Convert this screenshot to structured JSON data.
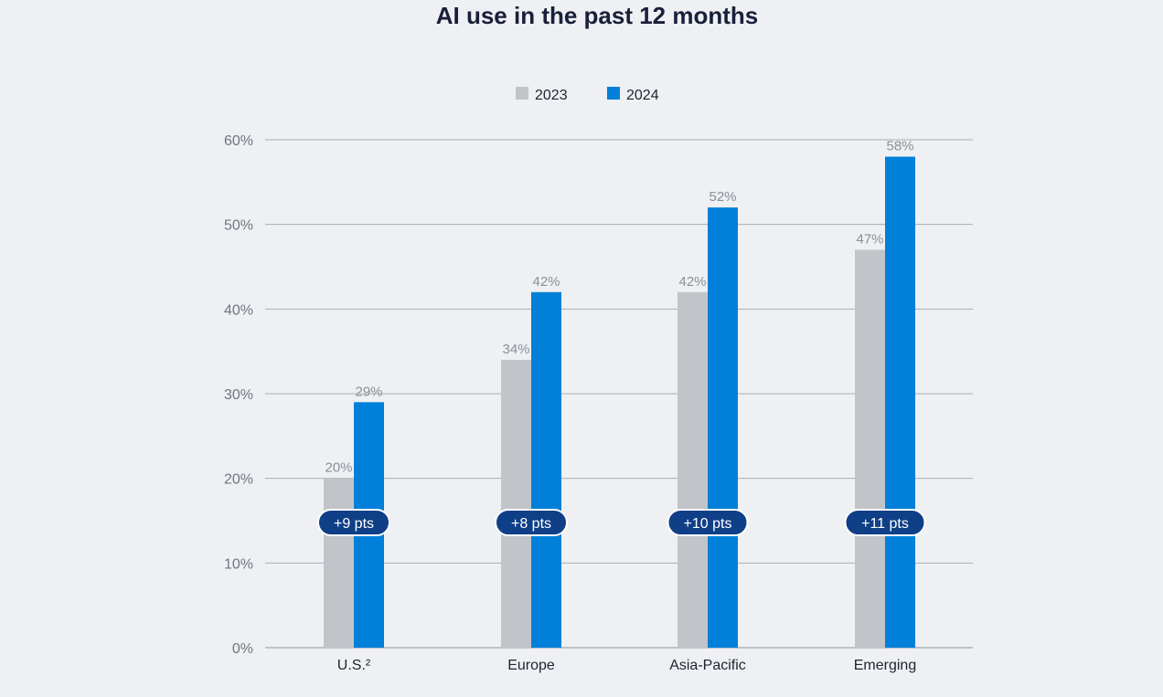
{
  "chart_data": {
    "type": "bar",
    "title": "AI use in the past 12 months",
    "categories": [
      "U.S.²",
      "Europe",
      "Asia-Pacific",
      "Emerging"
    ],
    "series": [
      {
        "name": "2023",
        "color": "#c1c5c9",
        "values": [
          20,
          34,
          42,
          47
        ]
      },
      {
        "name": "2024",
        "color": "#0080d8",
        "values": [
          29,
          42,
          52,
          58
        ]
      }
    ],
    "value_labels": {
      "2023": [
        "20%",
        "34%",
        "42%",
        "47%"
      ],
      "2024": [
        "29%",
        "42%",
        "52%",
        "58%"
      ]
    },
    "differences": [
      "+9 pts",
      "+8 pts",
      "+10 pts",
      "+11 pts"
    ],
    "yticks": [
      0,
      10,
      20,
      30,
      40,
      50,
      60
    ],
    "ytick_labels": [
      "0%",
      "10%",
      "20%",
      "30%",
      "40%",
      "50%",
      "60%"
    ],
    "ylim": [
      0,
      60
    ],
    "xlabel": "",
    "ylabel": "",
    "grid": true,
    "legend": "top-center",
    "pill_color": "#0f3f86"
  }
}
